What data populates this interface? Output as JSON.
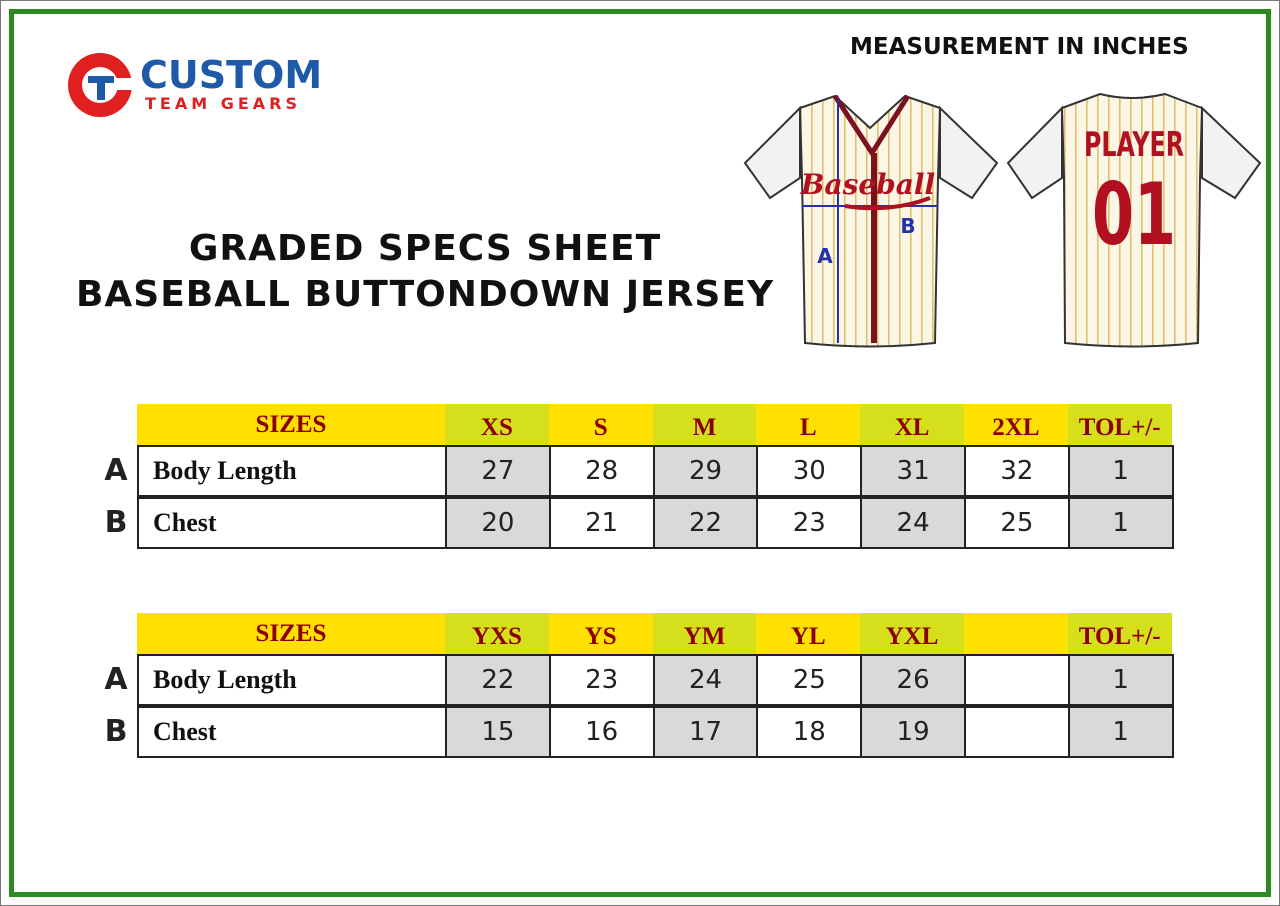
{
  "logo": {
    "name": "CUSTOM",
    "tagline": "TEAM GEARS"
  },
  "measurement_note": "MEASUREMENT IN INCHES",
  "title": [
    "GRADED SPECS SHEET",
    "BASEBALL BUTTONDOWN JERSEY"
  ],
  "jersey": {
    "front_text": "Baseball",
    "back_name": "PLAYER",
    "back_number": "01",
    "markers": [
      "A",
      "B"
    ]
  },
  "tables": [
    {
      "header": "SIZES",
      "sizes": [
        "XS",
        "S",
        "M",
        "L",
        "XL",
        "2XL"
      ],
      "tolerance_header": "TOL+/-",
      "rows": [
        {
          "marker": "A",
          "label": "Body Length",
          "values": [
            27,
            28,
            29,
            30,
            31,
            32
          ],
          "tolerance": 1
        },
        {
          "marker": "B",
          "label": "Chest",
          "values": [
            20,
            21,
            22,
            23,
            24,
            25
          ],
          "tolerance": 1
        }
      ]
    },
    {
      "header": "SIZES",
      "sizes": [
        "YXS",
        "YS",
        "YM",
        "YL",
        "YXL"
      ],
      "tolerance_header": "TOL+/-",
      "rows": [
        {
          "marker": "A",
          "label": "Body Length",
          "values": [
            22,
            23,
            24,
            25,
            26
          ],
          "tolerance": 1
        },
        {
          "marker": "B",
          "label": "Chest",
          "values": [
            15,
            16,
            17,
            18,
            19
          ],
          "tolerance": 1
        }
      ]
    }
  ]
}
